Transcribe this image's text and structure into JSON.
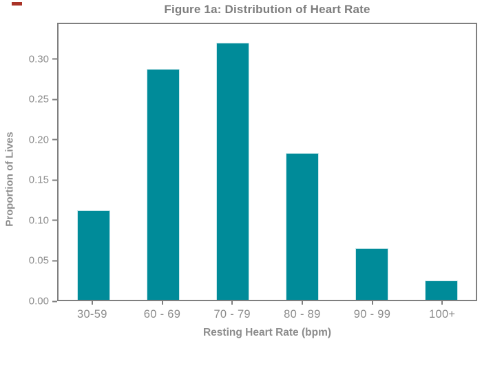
{
  "decoration": {
    "red_dash_color": "#a93226"
  },
  "chart_data": {
    "type": "bar",
    "title": "Figure 1a: Distribution of Heart Rate",
    "xlabel": "Resting Heart Rate (bpm)",
    "ylabel": "Proportion of Lives",
    "categories": [
      "30-59",
      "60 - 69",
      "70 - 79",
      "80 - 89",
      "90 - 99",
      "100+"
    ],
    "values": [
      0.112,
      0.289,
      0.322,
      0.184,
      0.065,
      0.024
    ],
    "ylim": [
      0,
      0.345
    ],
    "yticks": [
      0.0,
      0.05,
      0.1,
      0.15,
      0.2,
      0.25,
      0.3
    ],
    "ytick_labels": [
      "0.00",
      "0.05",
      "0.10",
      "0.15",
      "0.20",
      "0.25",
      "0.30"
    ],
    "bar_color": "#008b99",
    "bar_edge_color": "#cde9ec",
    "frame_color": "#7f7f7f",
    "text_color": "#8c8c8c",
    "title_color": "#7d7d7d",
    "grid": false,
    "legend": null
  }
}
